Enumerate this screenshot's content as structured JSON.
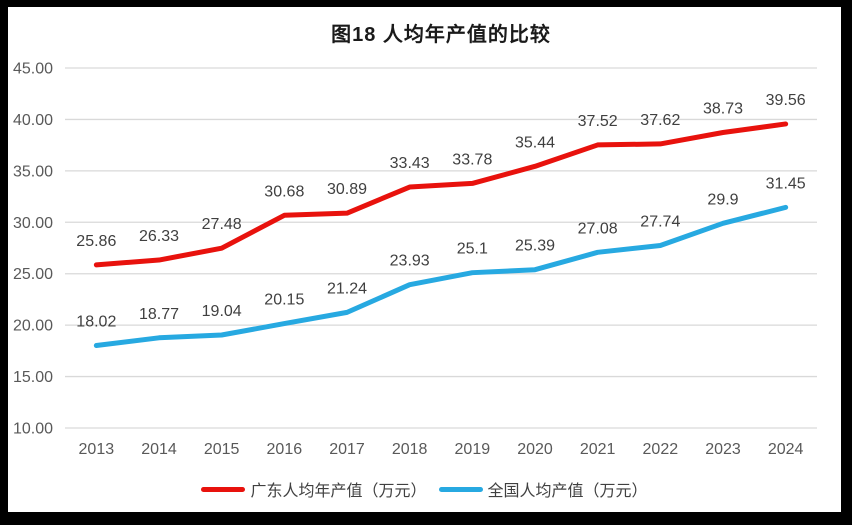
{
  "title": "图18 人均年产值的比较",
  "chart_data": {
    "type": "line",
    "title": "图18 人均年产值的比较",
    "categories": [
      "2013",
      "2014",
      "2015",
      "2016",
      "2017",
      "2018",
      "2019",
      "2020",
      "2021",
      "2022",
      "2023",
      "2024"
    ],
    "series": [
      {
        "name": "广东人均年产值（万元）",
        "color": "#e8120d",
        "values": [
          25.86,
          26.33,
          27.48,
          30.68,
          30.89,
          33.43,
          33.78,
          35.44,
          37.52,
          37.62,
          38.73,
          39.56
        ]
      },
      {
        "name": "全国人均产值（万元）",
        "color": "#27a9e1",
        "values": [
          18.02,
          18.77,
          19.04,
          20.15,
          21.24,
          23.93,
          25.1,
          25.39,
          27.08,
          27.74,
          29.9,
          31.45
        ]
      }
    ],
    "ylim": [
      10,
      45
    ],
    "ytick_step": 5,
    "yticks": [
      "45.00",
      "40.00",
      "35.00",
      "30.00",
      "25.00",
      "20.00",
      "15.00",
      "10.00"
    ],
    "xlabel": "",
    "ylabel": "",
    "grid": true,
    "legend_position": "bottom",
    "data_labels": "above"
  },
  "colors": {
    "background": "#ffffff",
    "frame": "#000000",
    "gridline": "#d9d9d9",
    "axis_text": "#595959",
    "data_label_text": "#404040"
  }
}
